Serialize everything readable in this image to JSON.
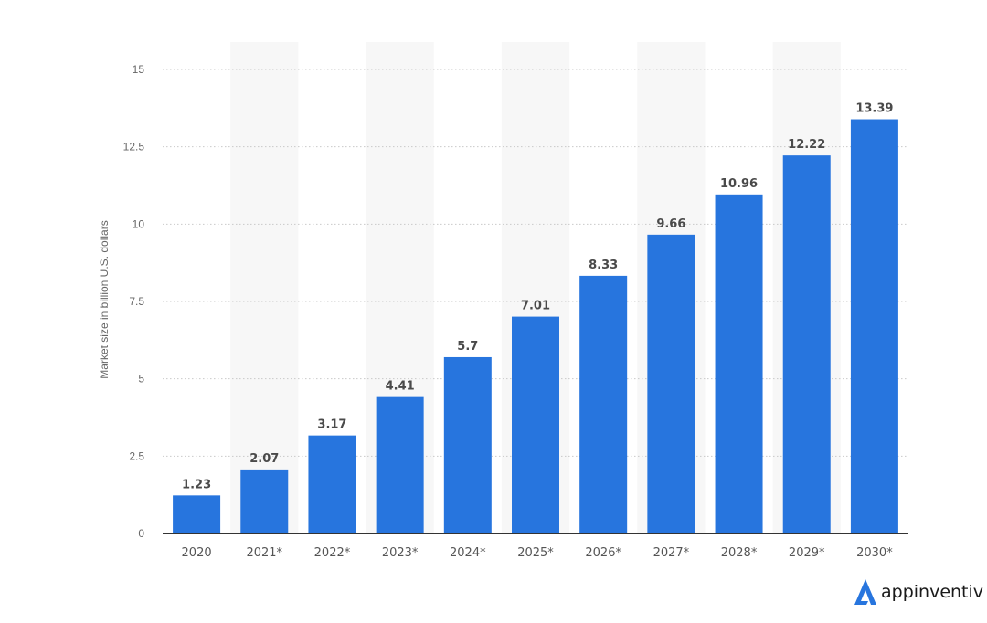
{
  "chart_data": {
    "type": "bar",
    "categories": [
      "2020",
      "2021*",
      "2022*",
      "2023*",
      "2024*",
      "2025*",
      "2026*",
      "2027*",
      "2028*",
      "2029*",
      "2030*"
    ],
    "values": [
      1.23,
      2.07,
      3.17,
      4.41,
      5.7,
      7.01,
      8.33,
      9.66,
      10.96,
      12.22,
      13.39
    ],
    "value_labels": [
      "1.23",
      "2.07",
      "3.17",
      "4.41",
      "5.7",
      "7.01",
      "8.33",
      "9.66",
      "10.96",
      "12.22",
      "13.39"
    ],
    "title": "",
    "xlabel": "",
    "ylabel": "Market size in billion U.S. dollars",
    "ylim": [
      0,
      15
    ],
    "yticks": [
      0,
      2.5,
      5,
      7.5,
      10,
      12.5,
      15
    ],
    "ytick_labels": [
      "0",
      "2.5",
      "5",
      "7.5",
      "10",
      "12.5",
      "15"
    ],
    "grid": "horizontal-dotted",
    "legend": "none",
    "bar_color": "#2775de",
    "band_color": "#f7f7f7"
  },
  "brand": {
    "name": "appinventiv",
    "icon": "appinventiv-logo-icon",
    "color": "#2775de"
  }
}
